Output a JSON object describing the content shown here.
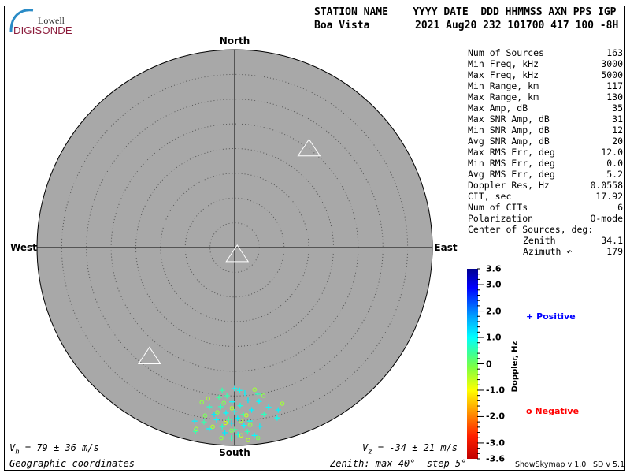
{
  "logo": {
    "line1": "Lowell",
    "line2": "DIGISONDE"
  },
  "header": {
    "labels": "STATION NAME    YYYY DATE  DDD HHMMSS AXN PPS IGP",
    "station": "Boa Vista",
    "values": "2021 Aug20 232 101700 417 100 -8H"
  },
  "directions": {
    "north": "North",
    "south": "South",
    "west": "West",
    "east": "East"
  },
  "stats": [
    {
      "label": "Num of Sources",
      "value": "163"
    },
    {
      "label": "Min Freq, kHz",
      "value": "3000"
    },
    {
      "label": "Max Freq, kHz",
      "value": "5000"
    },
    {
      "label": "Min Range, km",
      "value": "117"
    },
    {
      "label": "Max Range, km",
      "value": "130"
    },
    {
      "label": "Max Amp, dB",
      "value": "35"
    },
    {
      "label": "Max SNR Amp, dB",
      "value": "31"
    },
    {
      "label": "Min SNR Amp, dB",
      "value": "12"
    },
    {
      "label": "Avg SNR Amp, dB",
      "value": "20"
    },
    {
      "label": "Max RMS Err, deg",
      "value": "12.0"
    },
    {
      "label": "Min RMS Err, deg",
      "value": "0.0"
    },
    {
      "label": "Avg RMS Err, deg",
      "value": "5.2"
    },
    {
      "label": "Doppler Res, Hz",
      "value": "0.0558"
    },
    {
      "label": "CIT, sec",
      "value": "17.92"
    },
    {
      "label": "Num of CITs",
      "value": "6"
    },
    {
      "label": "Polarization",
      "value": "O-mode"
    },
    {
      "label": "Center of Sources, deg:",
      "value": ""
    },
    {
      "label": "Zenith",
      "value": "34.1"
    },
    {
      "label": "Azimuth ↶",
      "value": "179"
    }
  ],
  "footer": {
    "vh_label": "V",
    "vh_sub": "h",
    "vh_value": " = 79 ± 36 m/s",
    "vz_label": "V",
    "vz_sub": "z",
    "vz_value": " = -34 ± 21 m/s",
    "coords": "Geographic coordinates",
    "zenith_info": "Zenith: max 40°  step 5°",
    "version1": "ShowSkymap v 1.0",
    "version2": "SD v 5.1"
  },
  "colorbar": {
    "title": "Doppler, Hz",
    "ticks": [
      "3.6",
      "3.0",
      "2.0",
      "1.0",
      "0",
      "-1.0",
      "-2.0",
      "-3.0",
      "-3.6"
    ],
    "tick_values": [
      3.6,
      3.0,
      2.0,
      1.0,
      0,
      -1.0,
      -2.0,
      -3.0,
      -3.6
    ],
    "range": [
      -3.6,
      3.6
    ]
  },
  "legend": {
    "positive_symbol": "+",
    "positive_label": "Positive",
    "positive_color": "#0000ff",
    "negative_symbol": "o",
    "negative_label": "Negative",
    "negative_color": "#ff0000"
  },
  "colors": {
    "plot_bg": "#a8a8a8",
    "ring": "#555555"
  },
  "chart_data": {
    "type": "scatter",
    "projection": "polar skymap",
    "zenith_max": 40,
    "zenith_step": 5,
    "triangles_zenith_azimuth": [
      [
        25,
        37
      ],
      [
        1.5,
        160
      ],
      [
        28,
        218
      ]
    ],
    "points_zenith_azimuth_doppler": [
      [
        28.5,
        180,
        1.0
      ],
      [
        28.9,
        178,
        0.9
      ],
      [
        29.5,
        176,
        1.1
      ],
      [
        30.0,
        183,
        0.4
      ],
      [
        30.5,
        186,
        0.3
      ],
      [
        31.0,
        175,
        1.2
      ],
      [
        31.2,
        181,
        1.0
      ],
      [
        31.5,
        171,
        1.0
      ],
      [
        32.0,
        178,
        0.8
      ],
      [
        32.3,
        185,
        0.5
      ],
      [
        32.6,
        189,
        0.6
      ],
      [
        33.0,
        174,
        1.1
      ],
      [
        33.2,
        180,
        0.9
      ],
      [
        33.5,
        183,
        1.0
      ],
      [
        33.8,
        177,
        0.4
      ],
      [
        34.0,
        187,
        1.2
      ],
      [
        34.2,
        170,
        0.5
      ],
      [
        34.5,
        179,
        1.1
      ],
      [
        34.8,
        182,
        0.3
      ],
      [
        35.0,
        186,
        1.0
      ],
      [
        35.2,
        175,
        0.9
      ],
      [
        35.5,
        181,
        1.2
      ],
      [
        35.8,
        190,
        0.4
      ],
      [
        36.0,
        177,
        1.0
      ],
      [
        36.3,
        184,
        0.6
      ],
      [
        36.5,
        172,
        1.1
      ],
      [
        36.8,
        180,
        0.3
      ],
      [
        37.0,
        188,
        1.0
      ],
      [
        37.3,
        176,
        0.5
      ],
      [
        37.5,
        183,
        1.2
      ],
      [
        37.8,
        179,
        0.8
      ],
      [
        38.0,
        192,
        0.4
      ],
      [
        38.2,
        174,
        1.0
      ],
      [
        38.5,
        181,
        0.5
      ],
      [
        34.0,
        165,
        1.1
      ],
      [
        35.5,
        166,
        0.9
      ],
      [
        33.0,
        168,
        1.0
      ],
      [
        36.0,
        193,
        1.1
      ],
      [
        30.0,
        171,
        0.5
      ],
      [
        29.0,
        185,
        0.4
      ],
      [
        29.0,
        172,
        -0.4
      ],
      [
        30.5,
        169,
        -0.3
      ],
      [
        31.5,
        184,
        -0.2
      ],
      [
        32.5,
        181,
        -0.5
      ],
      [
        33.5,
        186,
        -0.3
      ],
      [
        34.0,
        176,
        -0.6
      ],
      [
        34.5,
        190,
        -0.2
      ],
      [
        35.0,
        178,
        -0.4
      ],
      [
        35.5,
        183,
        -0.7
      ],
      [
        36.0,
        175,
        -0.3
      ],
      [
        36.5,
        187,
        -0.5
      ],
      [
        37.0,
        181,
        -0.2
      ],
      [
        37.5,
        192,
        -0.4
      ],
      [
        38.0,
        178,
        -0.6
      ],
      [
        38.6,
        184,
        -0.3
      ],
      [
        39.0,
        176,
        -0.5
      ],
      [
        32.0,
        192,
        -0.3
      ],
      [
        33.0,
        163,
        -0.4
      ],
      [
        38.8,
        173,
        -0.2
      ],
      [
        31.0,
        190,
        -0.5
      ]
    ]
  }
}
